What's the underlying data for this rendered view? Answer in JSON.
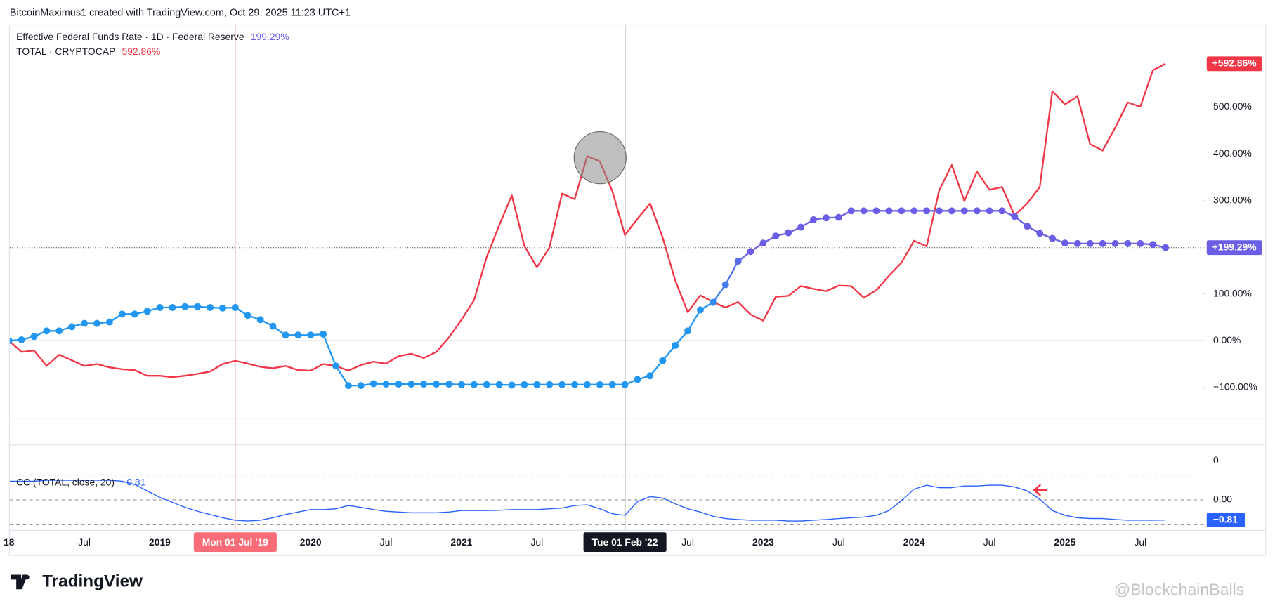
{
  "header": "BitcoinMaximus1 created with TradingView.com, Oct 29, 2025 11:23 UTC+1",
  "logo": "TradingView",
  "watermark": "@BlockchainBalls",
  "chart_data": {
    "type": "line",
    "categories": [
      "18",
      null,
      null,
      null,
      null,
      null,
      "Jul",
      null,
      null,
      null,
      null,
      null,
      "2019",
      null,
      null,
      null,
      null,
      null,
      null,
      null,
      null,
      null,
      null,
      null,
      "2020",
      null,
      null,
      null,
      null,
      null,
      "Jul",
      null,
      null,
      null,
      null,
      null,
      "2021",
      null,
      null,
      null,
      null,
      null,
      "Jul",
      null,
      null,
      null,
      null,
      null,
      null,
      null,
      null,
      null,
      null,
      null,
      "Jul",
      null,
      null,
      null,
      null,
      null,
      "2023",
      null,
      null,
      null,
      null,
      null,
      "Jul",
      null,
      null,
      null,
      null,
      null,
      "2024",
      null,
      null,
      null,
      null,
      null,
      "Jul",
      null,
      null,
      null,
      null,
      null,
      "2025",
      null,
      null,
      null,
      null,
      null,
      "Jul",
      null,
      null
    ],
    "series": [
      {
        "name": "Effective Federal Funds Rate · 1D · Federal Reserve",
        "legend_value": "199.29%",
        "price_label": "+199.29%",
        "color": "#6a5ee6",
        "markers": true,
        "values": [
          0,
          2,
          9,
          21,
          21,
          30,
          37,
          37,
          40,
          57,
          57,
          63,
          71,
          71,
          73,
          73,
          71,
          70,
          71,
          54,
          45,
          31,
          12,
          12,
          12,
          14,
          -54,
          -96,
          -96,
          -92,
          -93,
          -93,
          -93,
          -93,
          -93,
          -93,
          -94,
          -94,
          -94,
          -94,
          -95,
          -94,
          -94,
          -94,
          -94,
          -94,
          -94,
          -94,
          -94,
          -94,
          -83,
          -75,
          -43,
          -10,
          21,
          66,
          82,
          120,
          170,
          191,
          209,
          224,
          231,
          243,
          259,
          263,
          264,
          278,
          278,
          278,
          278,
          278,
          278,
          278,
          278,
          278,
          278,
          278,
          278,
          278,
          266,
          245,
          230,
          219,
          209,
          208,
          208,
          208,
          208,
          208,
          208,
          206,
          199.29
        ]
      },
      {
        "name": "TOTAL · CRYPTOCAP",
        "legend_value": "592.86%",
        "price_label": "+592.86%",
        "color": "#f23645",
        "markers": false,
        "values": [
          0,
          -24,
          -21,
          -54,
          -30,
          -42,
          -54,
          -50,
          -57,
          -61,
          -63,
          -75,
          -75,
          -78,
          -75,
          -71,
          -66,
          -50,
          -43,
          -49,
          -56,
          -59,
          -54,
          -63,
          -64,
          -50,
          -54,
          -64,
          -52,
          -45,
          -49,
          -33,
          -28,
          -37,
          -24,
          7,
          45,
          87,
          179,
          247,
          311,
          203,
          157,
          200,
          315,
          303,
          395,
          384,
          320,
          226,
          261,
          294,
          221,
          129,
          61,
          97,
          83,
          71,
          83,
          56,
          43,
          94,
          96,
          117,
          111,
          106,
          118,
          117,
          92,
          108,
          139,
          167,
          214,
          202,
          322,
          376,
          299,
          362,
          323,
          329,
          268,
          294,
          329,
          534,
          506,
          523,
          421,
          407,
          456,
          510,
          501,
          579,
          592.86
        ]
      }
    ],
    "ylim": [
      -165,
      677
    ],
    "yticks": [
      {
        "value": -100,
        "label": "−100.00%"
      },
      {
        "value": 0,
        "label": "0.00%"
      },
      {
        "value": 100,
        "label": "100.00%"
      },
      {
        "value": 200,
        "label": "200.00%"
      },
      {
        "value": 300,
        "label": "300.00%"
      },
      {
        "value": 400,
        "label": "400.00%"
      },
      {
        "value": 500,
        "label": "500.00%"
      }
    ],
    "zero_line": true,
    "crosshairs": [
      {
        "category": 18,
        "label": "Mon 01 Jul '19",
        "color": "#f7525f"
      },
      {
        "category": 49,
        "label": "Tue 01 Feb '22",
        "color": "#131722"
      }
    ],
    "extra_pane": {
      "yticks": [
        0
      ]
    },
    "indicator": {
      "type": "line",
      "name": "CC (TOTAL, close, 20)",
      "legend_value": "−0.81",
      "price_label": "−0.81",
      "color": "#2962ff",
      "values": [
        0.75,
        0.75,
        0.75,
        0.79,
        0.79,
        0.79,
        0.79,
        0.79,
        0.79,
        0.75,
        0.62,
        0.36,
        0.1,
        -0.1,
        -0.3,
        -0.46,
        -0.59,
        -0.72,
        -0.82,
        -0.85,
        -0.82,
        -0.72,
        -0.59,
        -0.49,
        -0.39,
        -0.39,
        -0.36,
        -0.23,
        -0.3,
        -0.39,
        -0.46,
        -0.49,
        -0.52,
        -0.52,
        -0.52,
        -0.49,
        -0.43,
        -0.43,
        -0.43,
        -0.42,
        -0.39,
        -0.39,
        -0.39,
        -0.36,
        -0.33,
        -0.23,
        -0.2,
        -0.36,
        -0.56,
        -0.62,
        -0.07,
        0.13,
        0.07,
        -0.16,
        -0.36,
        -0.49,
        -0.66,
        -0.75,
        -0.79,
        -0.82,
        -0.82,
        -0.82,
        -0.85,
        -0.85,
        -0.82,
        -0.79,
        -0.75,
        -0.72,
        -0.69,
        -0.62,
        -0.43,
        -0.03,
        0.43,
        0.59,
        0.49,
        0.49,
        0.56,
        0.56,
        0.59,
        0.59,
        0.52,
        0.36,
        0.03,
        -0.43,
        -0.62,
        -0.72,
        -0.75,
        -0.75,
        -0.79,
        -0.82,
        -0.82,
        -0.82,
        -0.81
      ],
      "ylim": [
        -1.21,
        1.21
      ],
      "yticks": [
        {
          "value": 0,
          "label": "0.00"
        }
      ],
      "levels": [
        1,
        0,
        -1
      ]
    }
  }
}
